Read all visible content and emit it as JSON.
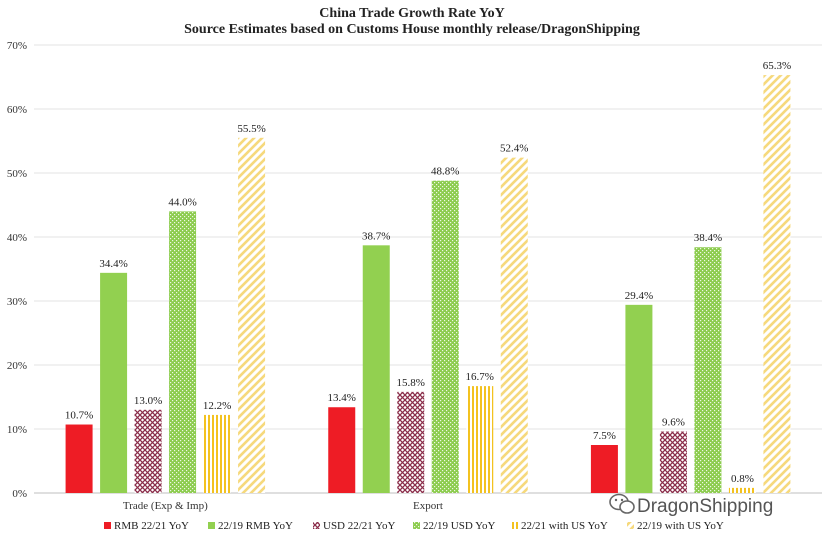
{
  "chart_data": {
    "type": "bar",
    "title": "China Trade Growth Rate YoY",
    "subtitle": "Source Estimates based on Customs House monthly release/DragonShipping",
    "categories": [
      "Trade (Exp & Imp)",
      "Export",
      ""
    ],
    "ylim": [
      0,
      70
    ],
    "yticks": [
      "0%",
      "10%",
      "20%",
      "30%",
      "40%",
      "50%",
      "60%",
      "70%"
    ],
    "grid": true,
    "legend_position": "bottom",
    "series": [
      {
        "name": "RMB 22/21 YoY",
        "color": "#ee1c25",
        "pattern": "solid",
        "values": [
          10.7,
          13.4,
          7.5
        ],
        "labels": [
          "10.7%",
          "13.4%",
          "7.5%"
        ]
      },
      {
        "name": "22/19 RMB YoY",
        "color": "#92d050",
        "pattern": "solid",
        "values": [
          34.4,
          38.7,
          29.4
        ],
        "labels": [
          "34.4%",
          "38.7%",
          "29.4%"
        ]
      },
      {
        "name": "USD 22/21 YoY",
        "color": "#8b2d4a",
        "pattern": "crosshatch",
        "values": [
          13.0,
          15.8,
          9.6
        ],
        "labels": [
          "13.0%",
          "15.8%",
          "9.6%"
        ]
      },
      {
        "name": "22/19 USD YoY",
        "color": "#8ccc4e",
        "pattern": "dots",
        "values": [
          44.0,
          48.8,
          38.4
        ],
        "labels": [
          "44.0%",
          "48.8%",
          "38.4%"
        ]
      },
      {
        "name": "22/21 with US YoY",
        "color": "#f3c220",
        "pattern": "vertical",
        "values": [
          12.2,
          16.7,
          0.8
        ],
        "labels": [
          "12.2%",
          "16.7%",
          "0.8%"
        ]
      },
      {
        "name": "22/19 with US YoY",
        "color": "#f6d97c",
        "pattern": "diagonal",
        "values": [
          55.5,
          52.4,
          65.3
        ],
        "labels": [
          "55.5%",
          "52.4%",
          "65.3%"
        ]
      }
    ]
  },
  "watermark": {
    "text": "DragonShipping",
    "icon": "wechat-icon"
  }
}
